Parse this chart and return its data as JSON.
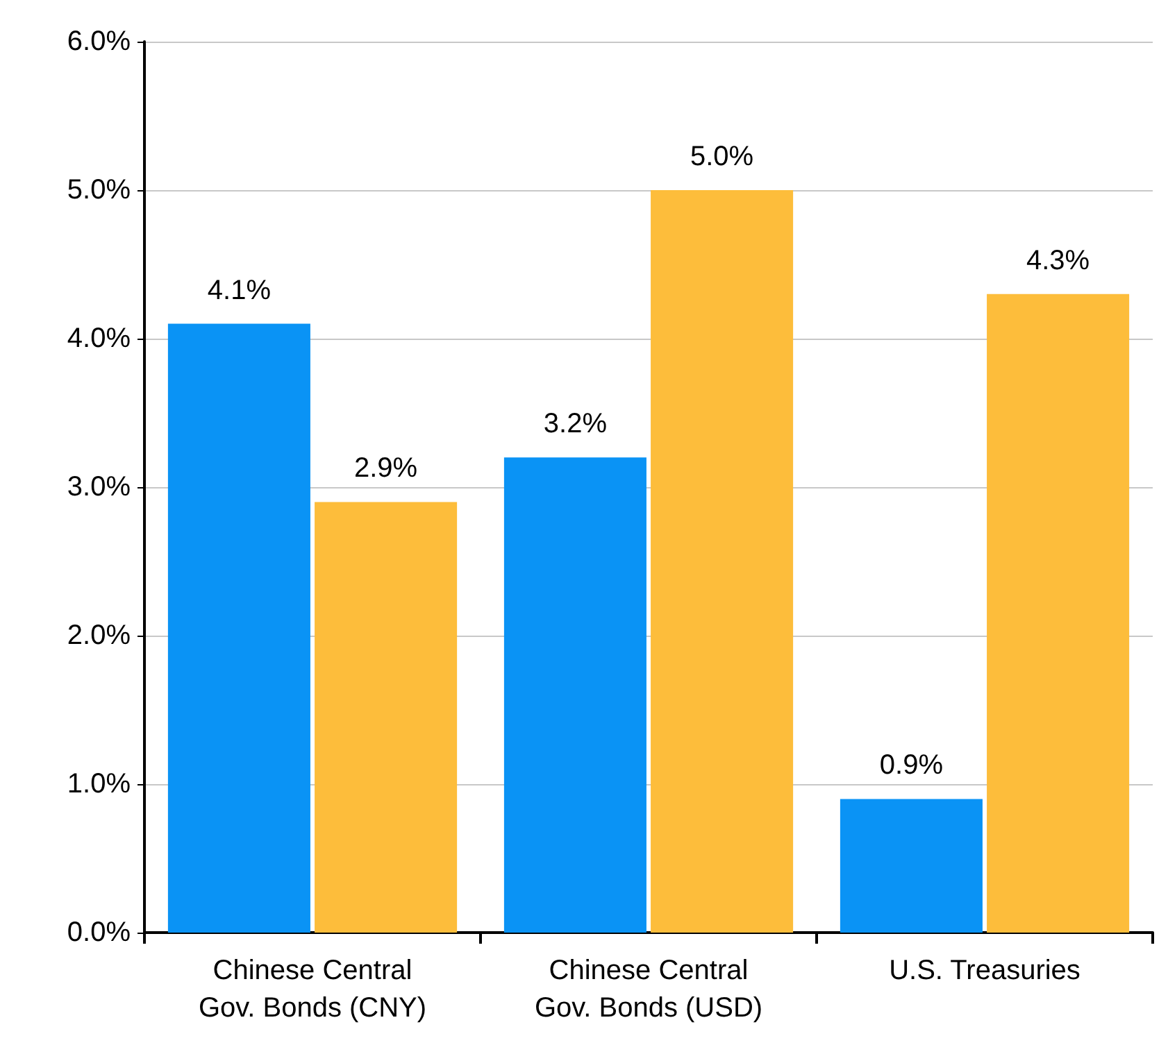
{
  "chart_data": {
    "type": "bar",
    "categories": [
      "Chinese Central\nGov. Bonds (CNY)",
      "Chinese Central\nGov. Bonds (USD)",
      "U.S. Treasuries"
    ],
    "series": [
      {
        "color": "#0a93f5",
        "values": [
          4.1,
          3.2,
          0.9
        ],
        "value_labels": [
          "4.1%",
          "3.2%",
          "0.9%"
        ]
      },
      {
        "color": "#fdbd3b",
        "values": [
          2.9,
          5.0,
          4.3
        ],
        "value_labels": [
          "2.9%",
          "5.0%",
          "4.3%"
        ]
      }
    ],
    "ylim": [
      0,
      6
    ],
    "yticks": [
      {
        "value": 0,
        "label": "0.0%"
      },
      {
        "value": 1,
        "label": "1.0%"
      },
      {
        "value": 2,
        "label": "2.0%"
      },
      {
        "value": 3,
        "label": "3.0%"
      },
      {
        "value": 4,
        "label": "4.0%"
      },
      {
        "value": 5,
        "label": "5.0%"
      },
      {
        "value": 6,
        "label": "6.0%"
      }
    ],
    "grid": "y"
  }
}
